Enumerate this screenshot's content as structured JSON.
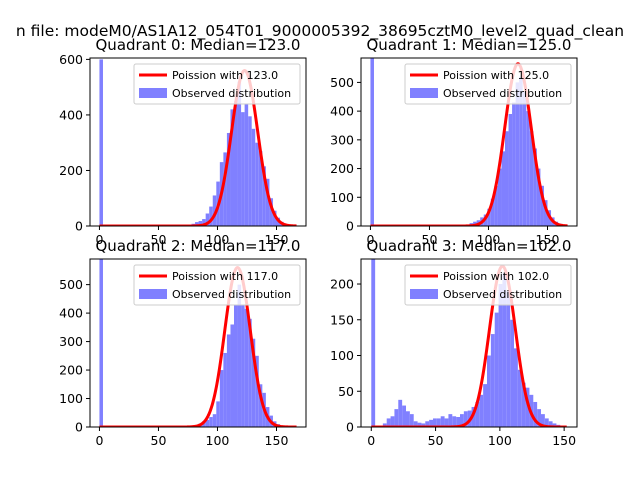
{
  "figure": {
    "suptitle": "n file: modeM0/AS1A12_054T01_9000005392_38695cztM0_level2_quad_clean"
  },
  "chart_data": [
    {
      "type": "bar",
      "title": "Quadrant 0: Median=123.0",
      "median": 123.0,
      "xlim": [
        -8,
        175
      ],
      "ylim": [
        0,
        605
      ],
      "xticks": [
        0,
        50,
        100,
        150
      ],
      "yticks": [
        0,
        200,
        400,
        600
      ],
      "xlabel": "",
      "ylabel": "",
      "legend": {
        "location": "upper right",
        "entries": [
          "Poission with 123.0",
          "Observed distribution"
        ]
      },
      "colors": {
        "hist": "#8080ff",
        "curve": "#ff0000"
      },
      "series": [
        {
          "name": "Observed distribution",
          "kind": "histogram",
          "bin_width": 3,
          "bin_starts": [
            0,
            72,
            75,
            78,
            81,
            84,
            87,
            90,
            93,
            96,
            99,
            102,
            105,
            108,
            111,
            114,
            117,
            120,
            123,
            126,
            129,
            132,
            135,
            138,
            141,
            144,
            147,
            150,
            153,
            156,
            159,
            162
          ],
          "counts": [
            600,
            3,
            5,
            8,
            14,
            18,
            25,
            45,
            70,
            110,
            160,
            230,
            265,
            335,
            420,
            450,
            520,
            410,
            440,
            395,
            350,
            300,
            270,
            215,
            170,
            100,
            55,
            30,
            15,
            8,
            4,
            2
          ]
        },
        {
          "name": "Poission with 123.0",
          "kind": "poisson",
          "peak": 560,
          "sigma": 11.1,
          "x_range": [
            0,
            167
          ]
        }
      ]
    },
    {
      "type": "bar",
      "title": "Quadrant 1: Median=125.0",
      "median": 125.0,
      "xlim": [
        -8,
        175
      ],
      "ylim": [
        0,
        585
      ],
      "xticks": [
        0,
        50,
        100,
        150
      ],
      "yticks": [
        0,
        100,
        200,
        300,
        400,
        500
      ],
      "xlabel": "",
      "ylabel": "",
      "legend": {
        "location": "upper right",
        "entries": [
          "Poission with 125.0",
          "Observed distribution"
        ]
      },
      "colors": {
        "hist": "#8080ff",
        "curve": "#ff0000"
      },
      "series": [
        {
          "name": "Observed distribution",
          "kind": "histogram",
          "bin_width": 3,
          "bin_starts": [
            0,
            78,
            81,
            84,
            87,
            90,
            93,
            96,
            99,
            102,
            105,
            108,
            111,
            114,
            117,
            120,
            123,
            126,
            129,
            132,
            135,
            138,
            141,
            144,
            147,
            150,
            153,
            156,
            159
          ],
          "counts": [
            585,
            3,
            5,
            10,
            15,
            20,
            30,
            40,
            60,
            95,
            140,
            200,
            260,
            330,
            390,
            430,
            500,
            520,
            470,
            400,
            330,
            270,
            200,
            140,
            90,
            55,
            30,
            15,
            8
          ]
        },
        {
          "name": "Poission with 125.0",
          "kind": "poisson",
          "peak": 565,
          "sigma": 11.2,
          "x_range": [
            0,
            167
          ]
        }
      ]
    },
    {
      "type": "bar",
      "title": "Quadrant 2: Median=117.0",
      "median": 117.0,
      "xlim": [
        -8,
        175
      ],
      "ylim": [
        0,
        590
      ],
      "xticks": [
        0,
        50,
        100,
        150
      ],
      "yticks": [
        0,
        100,
        200,
        300,
        400,
        500
      ],
      "xlabel": "",
      "ylabel": "",
      "legend": {
        "location": "upper right",
        "entries": [
          "Poission with 117.0",
          "Observed distribution"
        ]
      },
      "colors": {
        "hist": "#8080ff",
        "curve": "#ff0000"
      },
      "series": [
        {
          "name": "Observed distribution",
          "kind": "histogram",
          "bin_width": 3,
          "bin_starts": [
            0,
            78,
            81,
            84,
            87,
            90,
            93,
            96,
            99,
            102,
            105,
            108,
            111,
            114,
            117,
            120,
            123,
            126,
            129,
            132,
            135,
            138,
            141,
            144,
            147,
            150,
            153
          ],
          "counts": [
            590,
            3,
            6,
            12,
            20,
            25,
            35,
            45,
            90,
            200,
            260,
            325,
            360,
            430,
            500,
            430,
            415,
            380,
            310,
            250,
            150,
            120,
            70,
            40,
            20,
            10,
            5
          ]
        },
        {
          "name": "Poission with 117.0",
          "kind": "poisson",
          "peak": 560,
          "sigma": 10.8,
          "x_range": [
            0,
            167
          ]
        }
      ]
    },
    {
      "type": "bar",
      "title": "Quadrant 3: Median=102.0",
      "median": 102.0,
      "xlim": [
        -8,
        160
      ],
      "ylim": [
        0,
        235
      ],
      "xticks": [
        0,
        50,
        100,
        150
      ],
      "yticks": [
        0,
        50,
        100,
        150,
        200
      ],
      "xlabel": "",
      "ylabel": "",
      "legend": {
        "location": "upper right",
        "entries": [
          "Poission with 102.0",
          "Observed distribution"
        ]
      },
      "colors": {
        "hist": "#8080ff",
        "curve": "#ff0000"
      },
      "series": [
        {
          "name": "Observed distribution",
          "kind": "histogram",
          "bin_width": 3,
          "bin_starts": [
            0,
            6,
            9,
            12,
            15,
            18,
            21,
            24,
            27,
            30,
            33,
            36,
            39,
            42,
            45,
            48,
            51,
            54,
            57,
            60,
            63,
            66,
            69,
            72,
            75,
            78,
            81,
            84,
            87,
            90,
            93,
            96,
            99,
            102,
            105,
            108,
            111,
            114,
            117,
            120,
            123,
            126,
            129,
            132,
            135,
            138,
            141,
            144
          ],
          "counts": [
            235,
            2,
            5,
            12,
            15,
            25,
            38,
            30,
            22,
            18,
            8,
            6,
            5,
            8,
            10,
            12,
            12,
            15,
            12,
            18,
            15,
            14,
            18,
            22,
            23,
            28,
            35,
            45,
            60,
            100,
            130,
            160,
            200,
            215,
            190,
            150,
            110,
            80,
            62,
            55,
            45,
            35,
            25,
            18,
            12,
            8,
            5,
            3
          ]
        },
        {
          "name": "Poission with 102.0",
          "kind": "poisson",
          "peak": 225,
          "sigma": 10.1,
          "x_range": [
            0,
            152
          ]
        }
      ]
    }
  ]
}
